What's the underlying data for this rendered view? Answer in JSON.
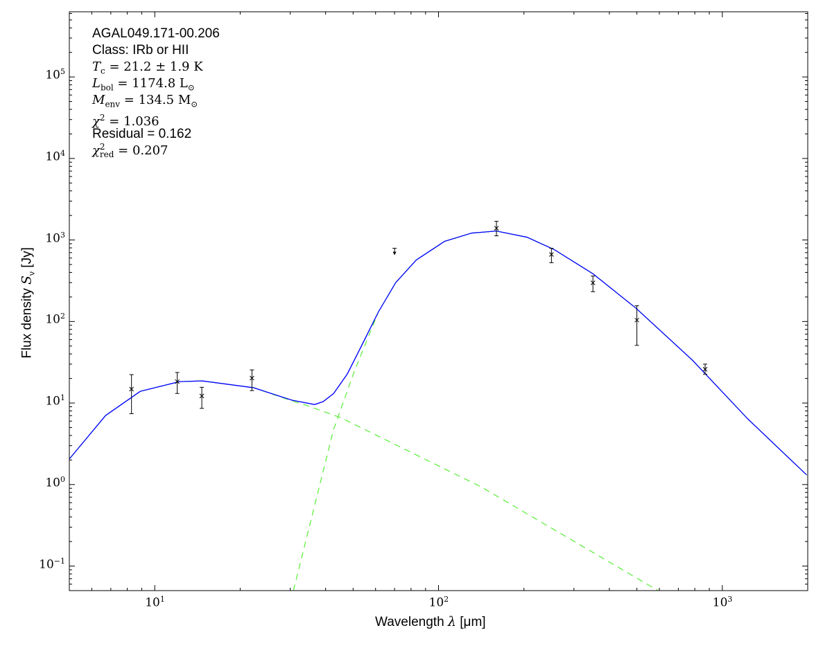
{
  "chart_data": {
    "type": "line",
    "xscale": "log",
    "yscale": "log",
    "xlim": [
      5,
      2000
    ],
    "ylim": [
      0.05,
      630000
    ],
    "xlabel": {
      "text": "Wavelength ",
      "sym": "λ",
      "unit": " [μm]"
    },
    "ylabel": {
      "text": "Flux density ",
      "sym": "S",
      "sub": "ν",
      "unit": " [Jy]"
    },
    "x_ticks": [
      {
        "value": 10,
        "base": "10",
        "exp": "1"
      },
      {
        "value": 100,
        "base": "10",
        "exp": "2"
      },
      {
        "value": 1000,
        "base": "10",
        "exp": "3"
      }
    ],
    "y_ticks": [
      {
        "value": 0.1,
        "base": "10",
        "exp": "−1"
      },
      {
        "value": 1,
        "base": "10",
        "exp": "0"
      },
      {
        "value": 10,
        "base": "10",
        "exp": "1"
      },
      {
        "value": 100,
        "base": "10",
        "exp": "2"
      },
      {
        "value": 1000,
        "base": "10",
        "exp": "3"
      },
      {
        "value": 10000,
        "base": "10",
        "exp": "4"
      },
      {
        "value": 100000,
        "base": "10",
        "exp": "5"
      }
    ],
    "annotations": [
      {
        "plain": "AGAL049.171-00.206"
      },
      {
        "plain": "Class: IRb or HII"
      },
      {
        "sym": "T",
        "sub": "c",
        "rest": " = 21.2 ± 1.9 K"
      },
      {
        "sym": "L",
        "sub": "bol",
        "rest": " = 1174.8 L",
        "rsub": "⊙"
      },
      {
        "sym": "M",
        "sub": "env",
        "rest": " = 134.5 M",
        "rsub": "⊙"
      },
      {
        "sym": "χ",
        "sup": "2",
        "rest": " = 1.036"
      },
      {
        "plain": "Residual = 0.162"
      },
      {
        "sym": "χ",
        "sup": "2",
        "sub": "red",
        "rest": " = 0.207"
      }
    ],
    "points": [
      {
        "x": 8.28,
        "y": 14.8,
        "ylo": 7.4,
        "yhi": 22.3
      },
      {
        "x": 12,
        "y": 18.3,
        "ylo": 13.1,
        "yhi": 23.7
      },
      {
        "x": 14.65,
        "y": 12.2,
        "ylo": 8.6,
        "yhi": 15.6
      },
      {
        "x": 22,
        "y": 20.2,
        "ylo": 14.2,
        "yhi": 25.5
      },
      {
        "x": 160,
        "y": 1393,
        "ylo": 1124,
        "yhi": 1694
      },
      {
        "x": 250,
        "y": 664,
        "ylo": 526,
        "yhi": 791
      },
      {
        "x": 350,
        "y": 298,
        "ylo": 232,
        "yhi": 361
      },
      {
        "x": 500,
        "y": 104,
        "ylo": 51,
        "yhi": 156
      },
      {
        "x": 870,
        "y": 26,
        "ylo": 22.6,
        "yhi": 30
      }
    ],
    "upper_limits": [
      {
        "x": 70,
        "y": 791
      }
    ],
    "series": [
      {
        "style": "solid",
        "color": "#0000ff",
        "x": [
          5.0,
          6.71,
          8.89,
          12.2,
          14.7,
          22.3,
          30.5,
          36.6,
          39.2,
          42.7,
          47.7,
          53.4,
          61.4,
          70.6,
          83.5,
          105,
          131,
          160,
          205,
          256,
          350,
          497,
          785,
          1230,
          1983
        ],
        "y": [
          2.06,
          7.03,
          13.9,
          18.3,
          18.7,
          15.4,
          10.8,
          9.6,
          10.4,
          13.1,
          22.7,
          49.5,
          131,
          299,
          568,
          962,
          1216,
          1288,
          1081,
          761,
          385,
          145,
          33.5,
          6.38,
          1.31
        ]
      },
      {
        "style": "dashed",
        "color": "#55ee33",
        "x": [
          5.0,
          6.71,
          8.89,
          12.2,
          14.7,
          22.3,
          30.5,
          34.1,
          45.1,
          141,
          594
        ],
        "y": [
          2.06,
          7.03,
          13.9,
          18.3,
          18.7,
          15.4,
          10.6,
          9.4,
          6.64,
          0.94,
          0.05
        ]
      },
      {
        "style": "dashed",
        "color": "#55ee33",
        "x": [
          30.8,
          42.7,
          50.4,
          61.4,
          70.6,
          83.5,
          105,
          131,
          160,
          205,
          256,
          350,
          497,
          785,
          1230,
          1983
        ],
        "y": [
          0.05,
          4.76,
          24,
          131,
          299,
          568,
          962,
          1216,
          1288,
          1081,
          761,
          385,
          145,
          33.5,
          6.38,
          1.31
        ]
      }
    ]
  }
}
